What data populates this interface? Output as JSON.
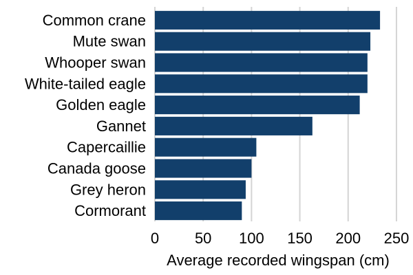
{
  "chart_data": {
    "type": "bar",
    "orientation": "horizontal",
    "categories": [
      "Common crane",
      "Mute swan",
      "Whooper swan",
      "White-tailed eagle",
      "Golden eagle",
      "Gannet",
      "Capercaillie",
      "Canada goose",
      "Grey heron",
      "Cormorant"
    ],
    "values": [
      233,
      223,
      220,
      220,
      212,
      163,
      105,
      100,
      94,
      90
    ],
    "title": "",
    "xlabel": "Average recorded wingspan (cm)",
    "ylabel": "",
    "xlim": [
      0,
      260
    ],
    "xticks": [
      0,
      50,
      100,
      150,
      200,
      250
    ],
    "grid": "vertical",
    "legend": "none",
    "bar_color": "#123f6b",
    "grid_color": "#d4d4d4"
  }
}
